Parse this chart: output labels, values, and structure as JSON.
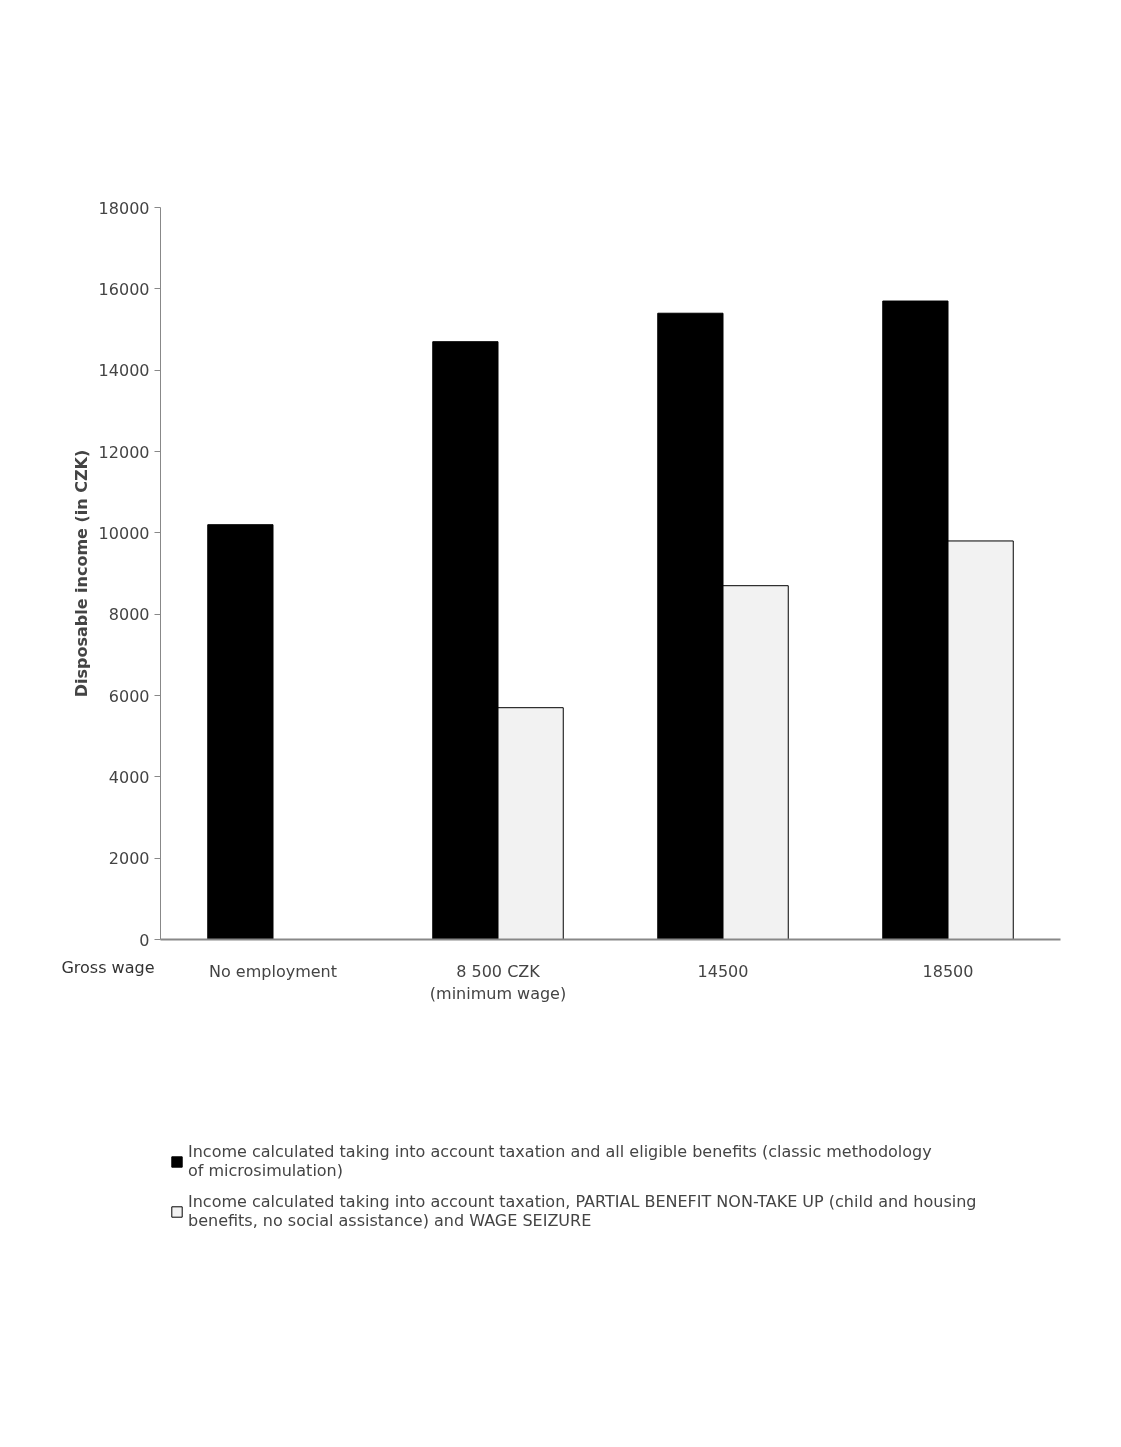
{
  "chart_data": {
    "type": "bar",
    "xlabel": "Gross wage",
    "ylabel": "Disposable income (in CZK)",
    "categories": [
      "No employment",
      "8 500 CZK\n(minimum wage)",
      "14500",
      "18500"
    ],
    "series": [
      {
        "name": "Income calculated taking into account taxation and all eligible benefits (classic methodology of microsimulation)",
        "color": "#000000",
        "values": [
          10200,
          14700,
          15400,
          15700
        ]
      },
      {
        "name": "Income calculated taking into account taxation, PARTIAL BENEFIT NON-TAKE UP (child and housing benefits, no social assistance) and WAGE SEIZURE",
        "color": "#f2f2f2",
        "values": [
          null,
          5700,
          8700,
          9800
        ]
      }
    ],
    "ylim": [
      0,
      18000
    ],
    "yticks": [
      0,
      2000,
      4000,
      6000,
      8000,
      10000,
      12000,
      14000,
      16000,
      18000
    ],
    "grid": false,
    "legend": "bottom"
  }
}
